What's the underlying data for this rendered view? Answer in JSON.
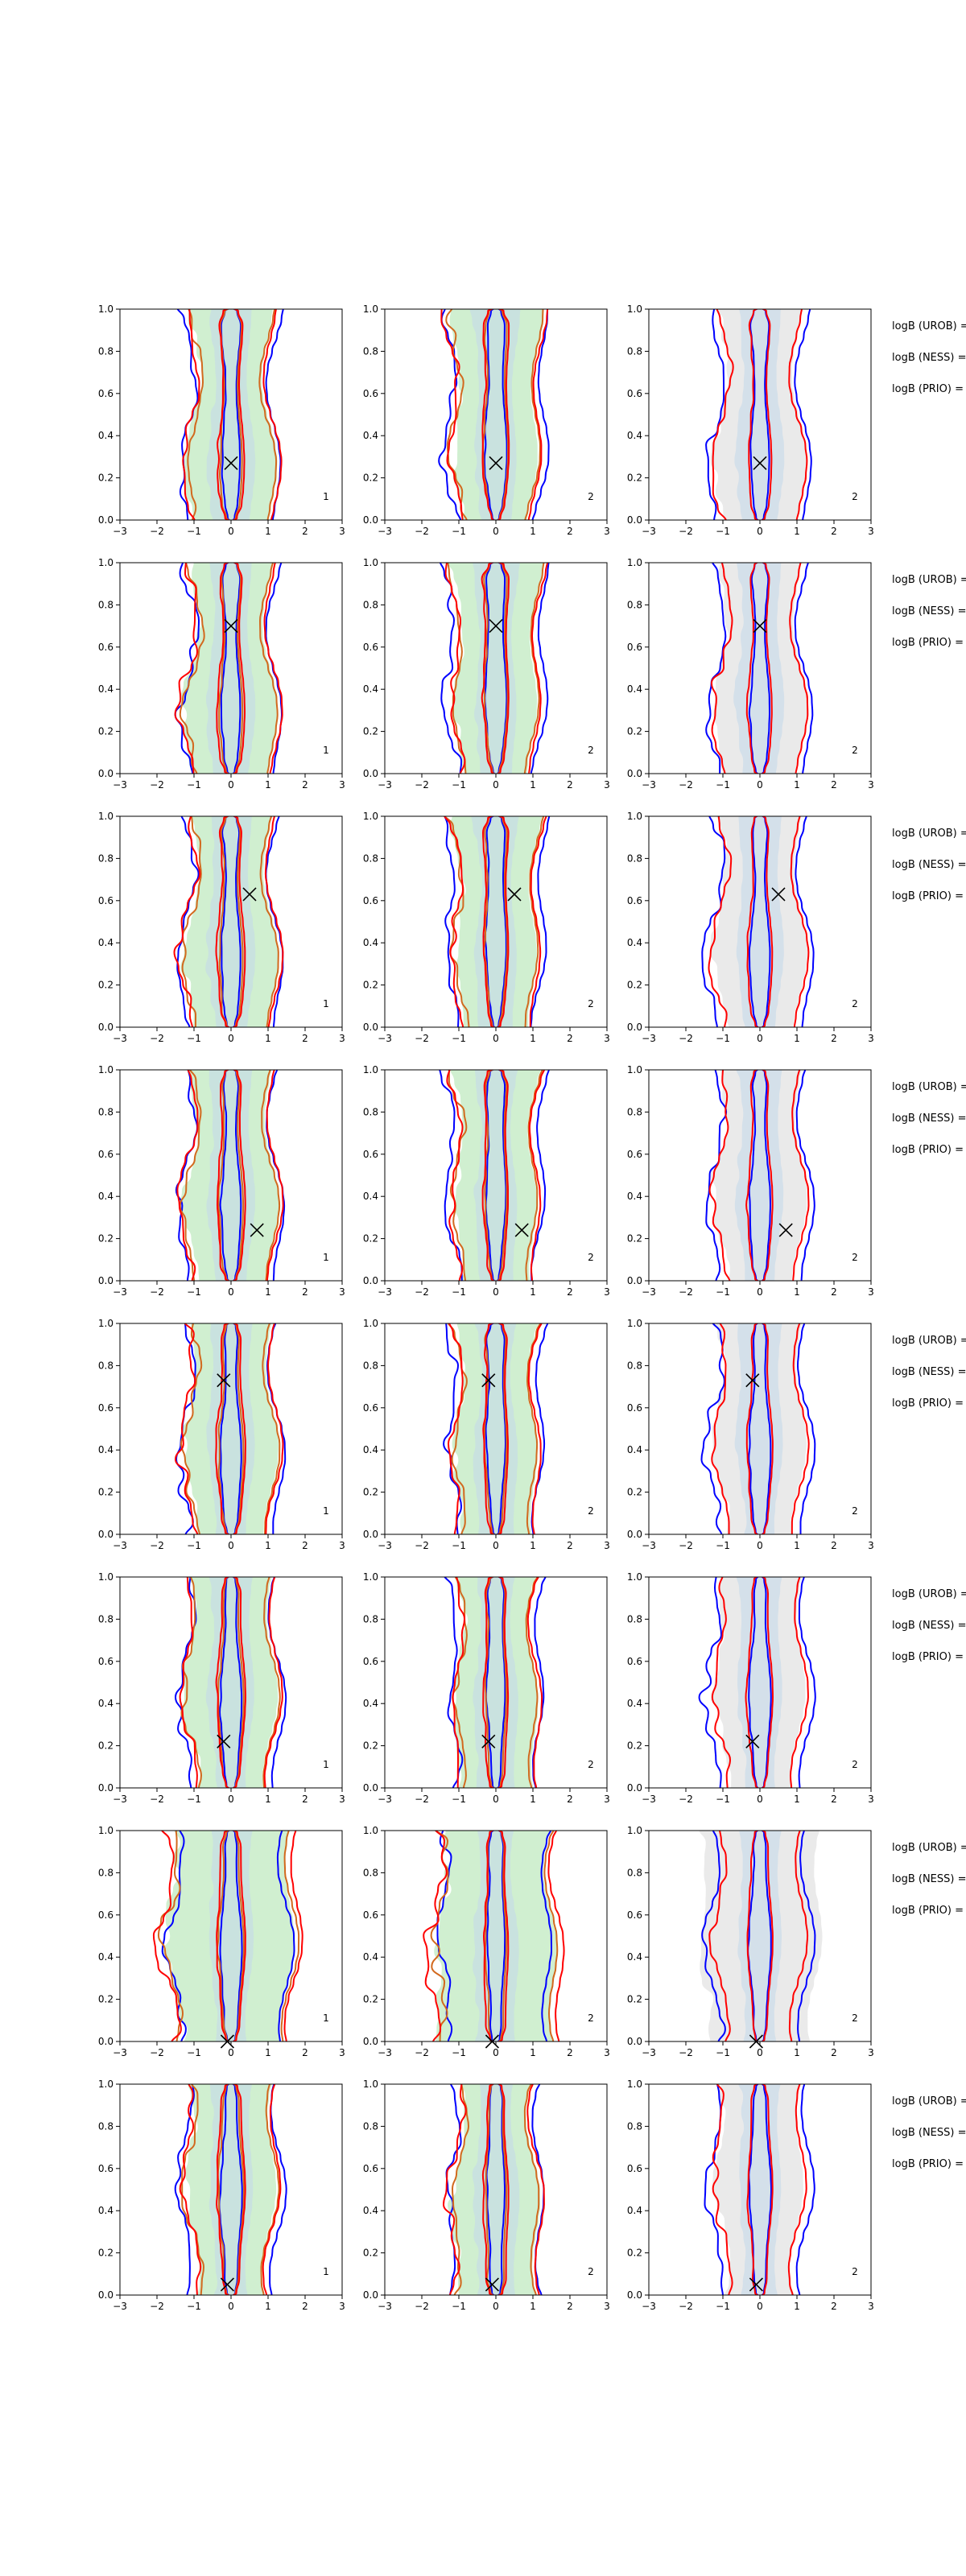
{
  "colors": {
    "blue": "#0000ff",
    "red": "#ff0000",
    "orange": "#d2691e",
    "green_fill": "#c8ecc8",
    "grey_fill": "#e6e6e6",
    "blue_fill": "#c4d8ea",
    "marker": "#000000"
  },
  "chart_data": {
    "type": "grid of 2D density contour plots (8 rows × 3 columns)",
    "x_range": [
      -3,
      3
    ],
    "y_range": [
      0,
      1
    ],
    "x_ticks": [
      "−3",
      "−2",
      "−1",
      "0",
      "1",
      "2",
      "3"
    ],
    "y_ticks": [
      "0.0",
      "0.2",
      "0.4",
      "0.6",
      "0.8",
      "1.0"
    ],
    "grid": false,
    "panel_numbers": [
      "1",
      "2",
      "2"
    ],
    "side_labels": [
      "logB (UROB) =",
      "logB (NESS) =",
      "logB (PRIO) ="
    ],
    "rows": [
      {
        "marker": {
          "x": 0.0,
          "y": 0.27
        }
      },
      {
        "marker": {
          "x": 0.0,
          "y": 0.7
        }
      },
      {
        "marker": {
          "x": 0.5,
          "y": 0.63
        }
      },
      {
        "marker": {
          "x": 0.7,
          "y": 0.24
        }
      },
      {
        "marker": {
          "x": -0.2,
          "y": 0.73
        }
      },
      {
        "marker": {
          "x": -0.2,
          "y": 0.22
        }
      },
      {
        "marker": {
          "x": -0.1,
          "y": 0.0
        }
      },
      {
        "marker": {
          "x": -0.1,
          "y": 0.05
        }
      }
    ],
    "columns": [
      {
        "fill": "green",
        "lines": [
          "blue",
          "orange",
          "red"
        ]
      },
      {
        "fill": "green",
        "lines": [
          "blue",
          "orange",
          "red"
        ]
      },
      {
        "fill": "grey",
        "lines": [
          "blue",
          "red"
        ]
      }
    ]
  }
}
